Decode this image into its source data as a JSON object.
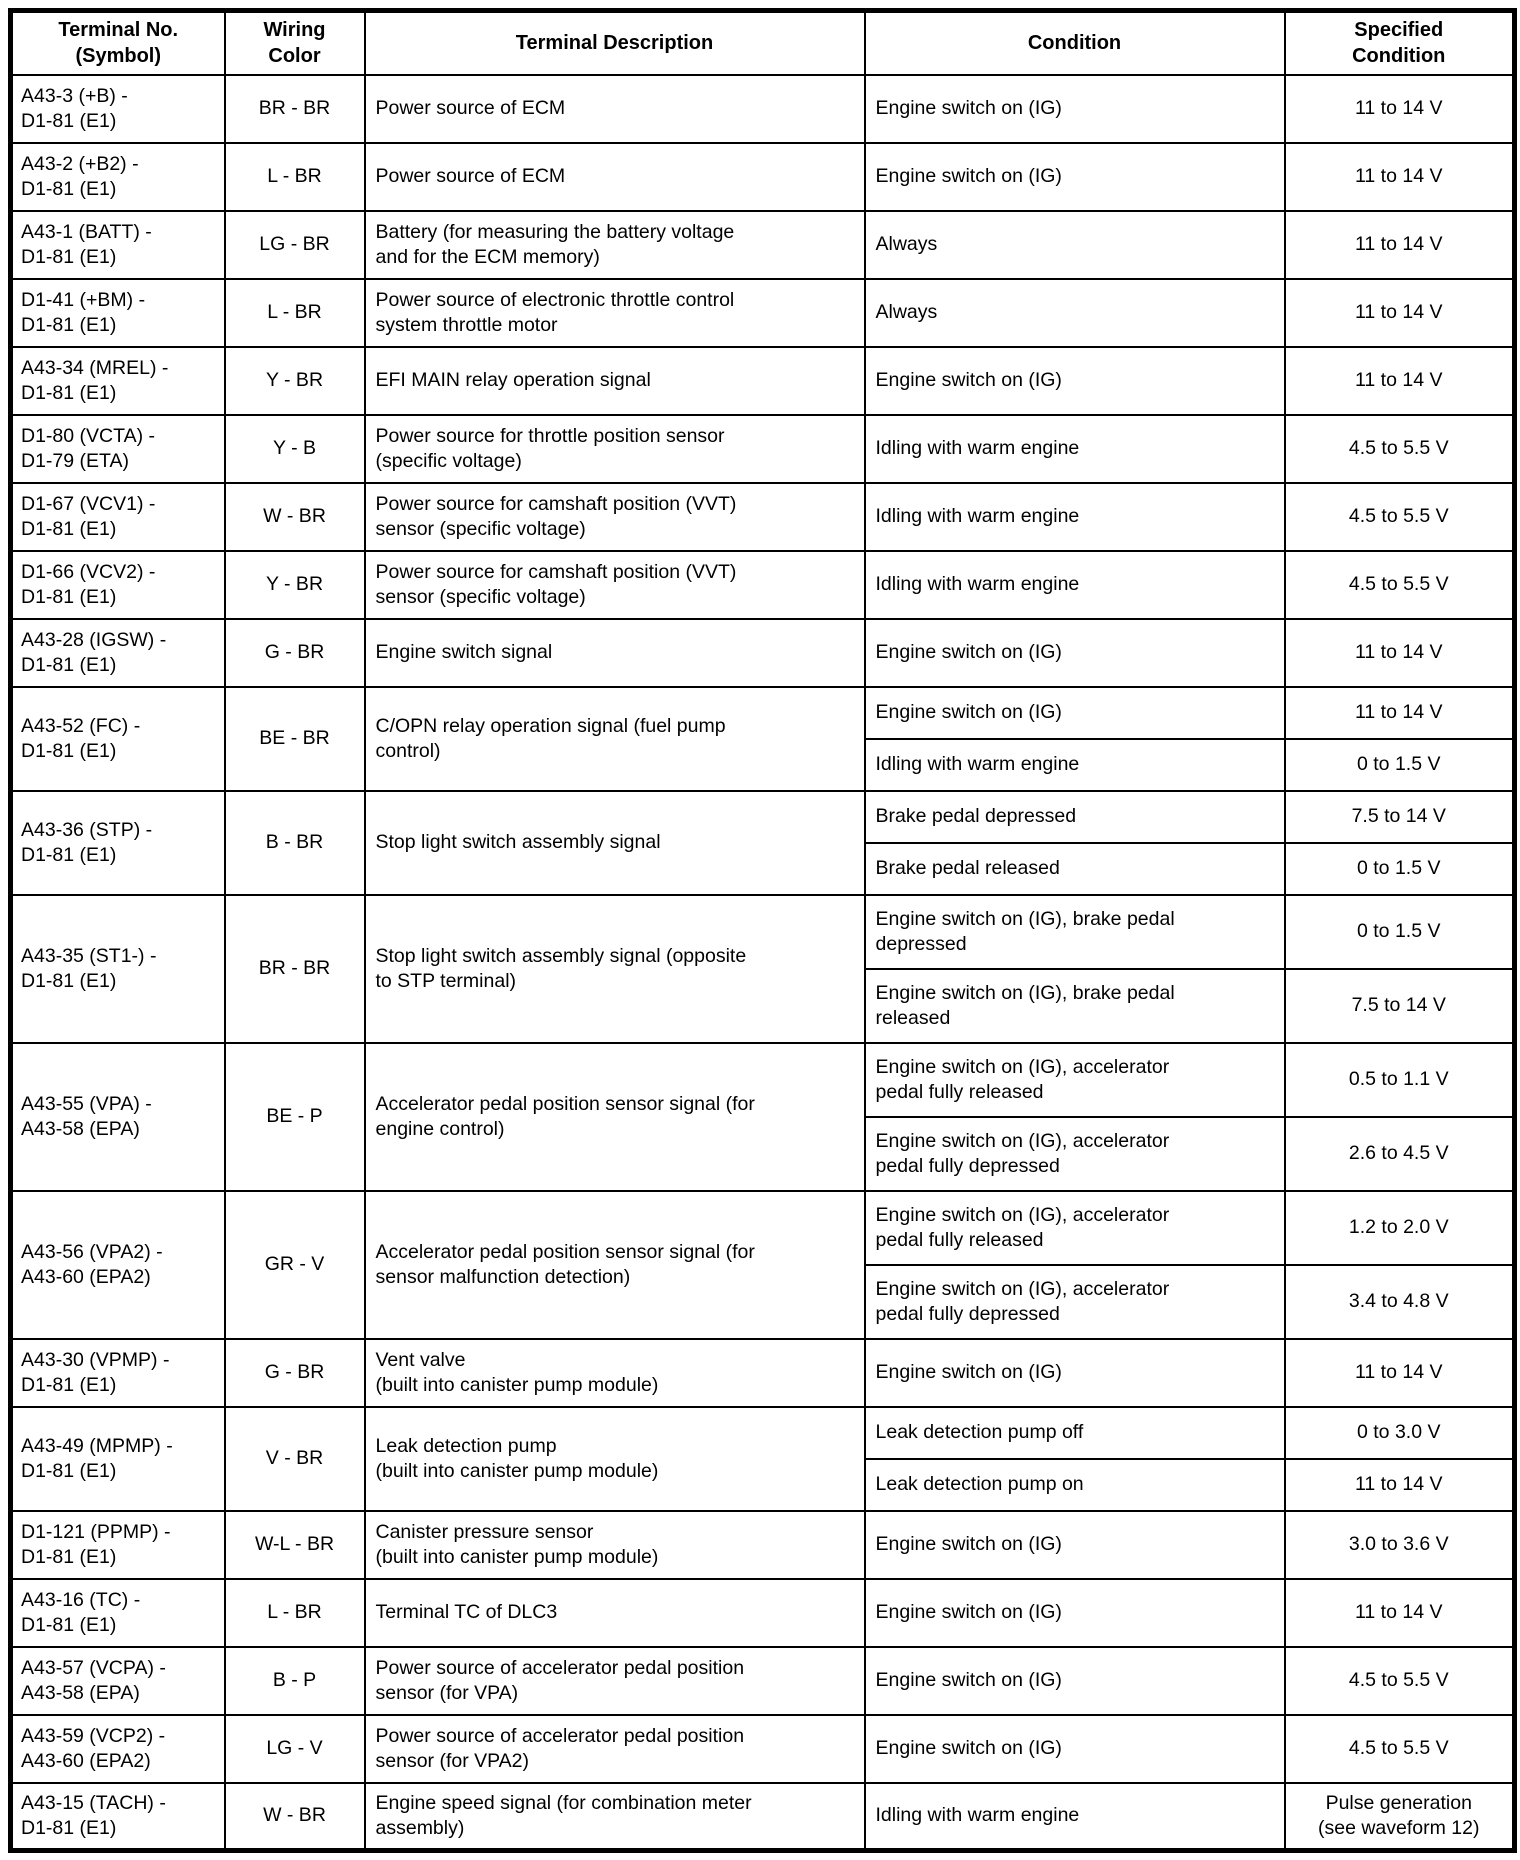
{
  "colors": {
    "border": "#000000",
    "background": "#ffffff",
    "text": "#000000"
  },
  "table": {
    "headers": [
      "Terminal No.\n(Symbol)",
      "Wiring\nColor",
      "Terminal Description",
      "Condition",
      "Specified\nCondition"
    ],
    "rows": [
      {
        "terminal": "A43-3 (+B) -\nD1-81 (E1)",
        "wiring": "BR - BR",
        "description": "Power source of ECM",
        "conditions": [
          {
            "condition": "Engine switch on (IG)",
            "specified": "11 to 14 V"
          }
        ]
      },
      {
        "terminal": "A43-2 (+B2) -\nD1-81 (E1)",
        "wiring": "L - BR",
        "description": "Power source of ECM",
        "conditions": [
          {
            "condition": "Engine switch on (IG)",
            "specified": "11 to 14 V"
          }
        ]
      },
      {
        "terminal": "A43-1 (BATT) -\nD1-81 (E1)",
        "wiring": "LG - BR",
        "description": "Battery (for measuring the battery voltage\nand for the ECM memory)",
        "conditions": [
          {
            "condition": "Always",
            "specified": "11 to 14 V"
          }
        ]
      },
      {
        "terminal": "D1-41 (+BM) -\nD1-81 (E1)",
        "wiring": "L - BR",
        "description": "Power source of electronic throttle control\nsystem throttle motor",
        "conditions": [
          {
            "condition": "Always",
            "specified": "11 to 14 V"
          }
        ]
      },
      {
        "terminal": "A43-34 (MREL) -\nD1-81 (E1)",
        "wiring": "Y - BR",
        "description": "EFI MAIN relay operation signal",
        "conditions": [
          {
            "condition": "Engine switch on (IG)",
            "specified": "11 to 14 V"
          }
        ]
      },
      {
        "terminal": "D1-80 (VCTA) -\nD1-79 (ETA)",
        "wiring": "Y - B",
        "description": "Power source for throttle position sensor\n(specific voltage)",
        "conditions": [
          {
            "condition": "Idling with warm engine",
            "specified": "4.5 to 5.5 V"
          }
        ]
      },
      {
        "terminal": "D1-67 (VCV1) -\nD1-81 (E1)",
        "wiring": "W - BR",
        "description": "Power source for camshaft position (VVT)\nsensor (specific voltage)",
        "conditions": [
          {
            "condition": "Idling with warm engine",
            "specified": "4.5 to 5.5 V"
          }
        ]
      },
      {
        "terminal": "D1-66 (VCV2) -\nD1-81 (E1)",
        "wiring": "Y - BR",
        "description": "Power source for camshaft position (VVT)\nsensor (specific voltage)",
        "conditions": [
          {
            "condition": "Idling with warm engine",
            "specified": "4.5 to 5.5 V"
          }
        ]
      },
      {
        "terminal": "A43-28 (IGSW) -\nD1-81 (E1)",
        "wiring": "G - BR",
        "description": "Engine switch signal",
        "conditions": [
          {
            "condition": "Engine switch on (IG)",
            "specified": "11 to 14 V"
          }
        ]
      },
      {
        "terminal": "A43-52 (FC) -\nD1-81 (E1)",
        "wiring": "BE - BR",
        "description": "C/OPN relay operation signal (fuel pump\ncontrol)",
        "conditions": [
          {
            "condition": "Engine switch on (IG)",
            "specified": "11 to 14 V"
          },
          {
            "condition": "Idling with warm engine",
            "specified": "0 to 1.5 V"
          }
        ]
      },
      {
        "terminal": "A43-36 (STP) -\nD1-81 (E1)",
        "wiring": "B - BR",
        "description": "Stop light switch assembly signal",
        "conditions": [
          {
            "condition": "Brake pedal depressed",
            "specified": "7.5 to 14 V"
          },
          {
            "condition": "Brake pedal released",
            "specified": "0 to 1.5 V"
          }
        ]
      },
      {
        "terminal": "A43-35 (ST1-) -\nD1-81 (E1)",
        "wiring": "BR - BR",
        "description": "Stop light switch assembly signal (opposite\nto STP terminal)",
        "conditions": [
          {
            "condition": "Engine switch on (IG), brake pedal\ndepressed",
            "specified": "0 to 1.5 V"
          },
          {
            "condition": "Engine switch on (IG), brake pedal\nreleased",
            "specified": "7.5 to 14 V"
          }
        ]
      },
      {
        "terminal": "A43-55 (VPA) -\nA43-58 (EPA)",
        "wiring": "BE - P",
        "description": "Accelerator pedal position sensor signal (for\nengine control)",
        "conditions": [
          {
            "condition": "Engine switch on (IG), accelerator\npedal fully released",
            "specified": "0.5 to 1.1 V"
          },
          {
            "condition": "Engine switch on (IG), accelerator\npedal fully depressed",
            "specified": "2.6 to 4.5 V"
          }
        ]
      },
      {
        "terminal": "A43-56 (VPA2) -\nA43-60 (EPA2)",
        "wiring": "GR - V",
        "description": "Accelerator pedal position sensor signal (for\nsensor malfunction detection)",
        "conditions": [
          {
            "condition": "Engine switch on (IG), accelerator\npedal fully released",
            "specified": "1.2 to 2.0 V"
          },
          {
            "condition": "Engine switch on (IG), accelerator\npedal fully depressed",
            "specified": "3.4 to 4.8 V"
          }
        ]
      },
      {
        "terminal": "A43-30 (VPMP) -\nD1-81 (E1)",
        "wiring": "G - BR",
        "description": "Vent valve\n(built into canister pump module)",
        "conditions": [
          {
            "condition": "Engine switch on (IG)",
            "specified": "11 to 14 V"
          }
        ]
      },
      {
        "terminal": "A43-49 (MPMP) -\nD1-81 (E1)",
        "wiring": "V - BR",
        "description": "Leak detection pump\n(built into canister pump module)",
        "conditions": [
          {
            "condition": "Leak detection pump off",
            "specified": "0 to 3.0 V"
          },
          {
            "condition": "Leak detection pump on",
            "specified": "11 to 14 V"
          }
        ]
      },
      {
        "terminal": "D1-121 (PPMP) -\nD1-81 (E1)",
        "wiring": "W-L - BR",
        "description": "Canister pressure sensor\n(built into canister pump module)",
        "conditions": [
          {
            "condition": "Engine switch on (IG)",
            "specified": "3.0 to 3.6 V"
          }
        ]
      },
      {
        "terminal": "A43-16 (TC) -\nD1-81 (E1)",
        "wiring": "L - BR",
        "description": "Terminal TC of DLC3",
        "conditions": [
          {
            "condition": "Engine switch on (IG)",
            "specified": "11 to 14 V"
          }
        ]
      },
      {
        "terminal": "A43-57 (VCPA) -\nA43-58 (EPA)",
        "wiring": "B - P",
        "description": "Power source of accelerator pedal position\nsensor (for VPA)",
        "conditions": [
          {
            "condition": "Engine switch on (IG)",
            "specified": "4.5 to 5.5 V"
          }
        ]
      },
      {
        "terminal": "A43-59 (VCP2) -\nA43-60 (EPA2)",
        "wiring": "LG - V",
        "description": "Power source of accelerator pedal position\nsensor (for VPA2)",
        "conditions": [
          {
            "condition": "Engine switch on (IG)",
            "specified": "4.5 to 5.5 V"
          }
        ]
      },
      {
        "terminal": "A43-15 (TACH) -\nD1-81 (E1)",
        "wiring": "W - BR",
        "description": "Engine speed signal (for combination meter\nassembly)",
        "conditions": [
          {
            "condition": "Idling with warm engine",
            "specified": "Pulse generation\n(see waveform 12)"
          }
        ]
      }
    ]
  }
}
